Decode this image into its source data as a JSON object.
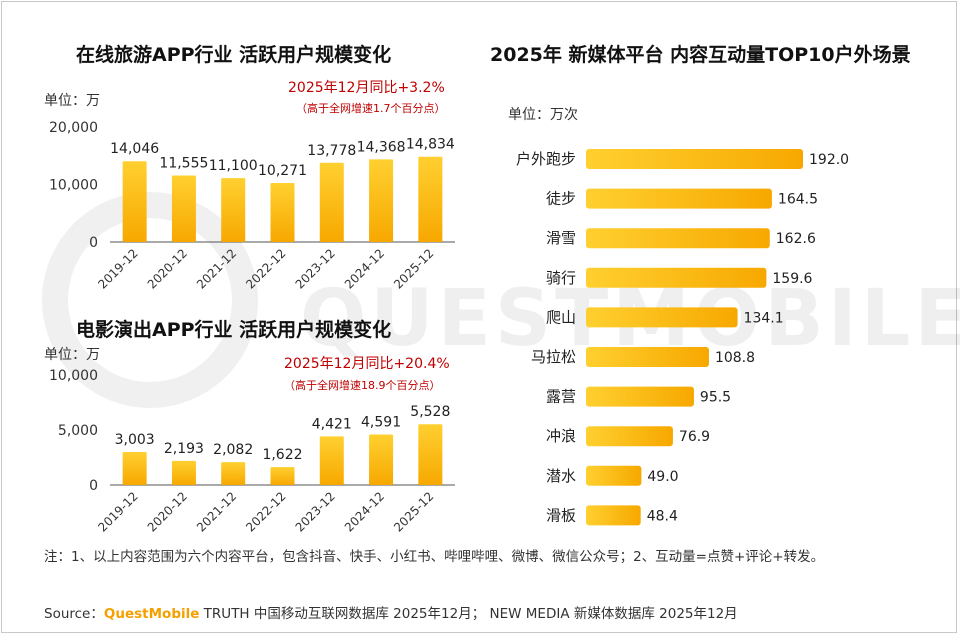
{
  "brand_colors": {
    "bar_top": "#ffd030",
    "bar_bottom": "#f7a800",
    "accent": "#c00000",
    "brand": "#f5a000"
  },
  "watermark_text": "QUESTMOBILE",
  "chart_data": [
    {
      "id": "travel",
      "type": "bar",
      "title": "在线旅游APP行业 活跃用户规模变化",
      "unit": "单位：万",
      "categories": [
        "2019-12",
        "2020-12",
        "2021-12",
        "2022-12",
        "2023-12",
        "2024-12",
        "2025-12"
      ],
      "values": [
        14046,
        11555,
        11100,
        10271,
        13778,
        14368,
        14834
      ],
      "value_labels": [
        "14,046",
        "11,555",
        "11,100",
        "10,271",
        "13,778",
        "14,368",
        "14,834"
      ],
      "ylim": [
        0,
        20000
      ],
      "yticks": [
        0,
        10000,
        20000
      ],
      "ytick_labels": [
        "0",
        "10,000",
        "20,000"
      ],
      "highlight": "2025年12月同比+3.2%",
      "highlight_sub": "（高于全网增速1.7个百分点）"
    },
    {
      "id": "movie",
      "type": "bar",
      "title": "电影演出APP行业 活跃用户规模变化",
      "unit": "单位：万",
      "categories": [
        "2019-12",
        "2020-12",
        "2021-12",
        "2022-12",
        "2023-12",
        "2024-12",
        "2025-12"
      ],
      "values": [
        3003,
        2193,
        2082,
        1622,
        4421,
        4591,
        5528
      ],
      "value_labels": [
        "3,003",
        "2,193",
        "2,082",
        "1,622",
        "4,421",
        "4,591",
        "5,528"
      ],
      "ylim": [
        0,
        10000
      ],
      "yticks": [
        0,
        5000,
        10000
      ],
      "ytick_labels": [
        "0",
        "5,000",
        "10,000"
      ],
      "highlight": "2025年12月同比+20.4%",
      "highlight_sub": "（高于全网增速18.9个百分点）"
    },
    {
      "id": "outdoor",
      "type": "bar",
      "orientation": "horizontal",
      "title": "2025年 新媒体平台 内容互动量TOP10户外场景",
      "unit": "单位：万次",
      "categories": [
        "户外跑步",
        "徒步",
        "滑雪",
        "骑行",
        "爬山",
        "马拉松",
        "露营",
        "冲浪",
        "潜水",
        "滑板"
      ],
      "values": [
        192.0,
        164.5,
        162.6,
        159.6,
        134.1,
        108.8,
        95.5,
        76.9,
        49.0,
        48.4
      ],
      "value_labels": [
        "192.0",
        "164.5",
        "162.6",
        "159.6",
        "134.1",
        "108.8",
        "95.5",
        "76.9",
        "49.0",
        "48.4"
      ],
      "xlim": [
        0,
        192
      ]
    }
  ],
  "note": "注：1、以上内容范围为六个内容平台，包含抖音、快手、小红书、哔哩哔哩、微博、微信公众号；2、互动量=点赞+评论+转发。",
  "source": {
    "label": "Source：",
    "brand": "QuestMobile",
    "text": " TRUTH 中国移动互联网数据库 2025年12月； NEW MEDIA 新媒体数据库 2025年12月"
  }
}
